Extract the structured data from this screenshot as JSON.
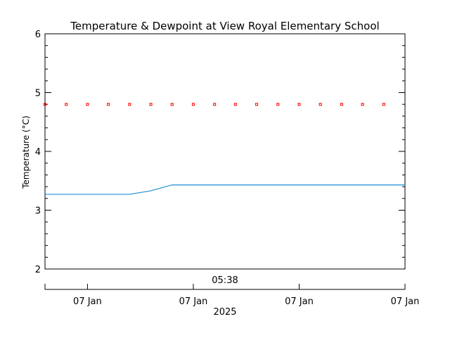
{
  "chart_data": {
    "type": "line",
    "title": "Temperature & Dewpoint at View Royal Elementary School",
    "ylabel": "Temperature (°C)",
    "ylim": [
      2,
      6
    ],
    "yticks": [
      2,
      3,
      4,
      5,
      6
    ],
    "xlim": [
      0,
      1
    ],
    "top_time_label": "05:38",
    "xtick_labels": [
      "07 Jan",
      "07 Jan",
      "07 Jan",
      "07 Jan"
    ],
    "year_label": "2025",
    "grid": false,
    "series": [
      {
        "role": "temperature",
        "color": "#ff0000",
        "style": "points",
        "x": [
          0.0,
          0.059,
          0.118,
          0.176,
          0.235,
          0.294,
          0.353,
          0.412,
          0.471,
          0.529,
          0.588,
          0.647,
          0.706,
          0.765,
          0.824,
          0.882,
          0.941
        ],
        "values": [
          4.8,
          4.8,
          4.8,
          4.8,
          4.8,
          4.8,
          4.8,
          4.8,
          4.8,
          4.8,
          4.8,
          4.8,
          4.8,
          4.8,
          4.8,
          4.8,
          4.8
        ]
      },
      {
        "role": "dewpoint",
        "color": "#1f8fd6",
        "style": "line",
        "x": [
          0.0,
          0.235,
          0.294,
          0.353,
          1.0
        ],
        "values": [
          3.27,
          3.27,
          3.33,
          3.43,
          3.43
        ]
      }
    ]
  }
}
